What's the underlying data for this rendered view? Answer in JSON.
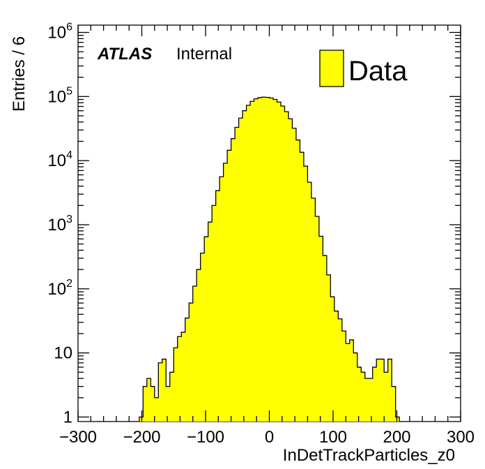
{
  "chart_data": {
    "type": "histogram",
    "xlabel": "InDetTrackParticles_z0",
    "ylabel": "Entries / 6",
    "xlim": [
      -300,
      300
    ],
    "ylim": [
      0.85,
      1300000
    ],
    "yscale": "log",
    "bin_width": 6,
    "label_atlas": "ATLAS",
    "label_status": "Internal",
    "legend": {
      "position": "top-right",
      "entries": [
        "Data"
      ]
    },
    "colors": {
      "fill": "#ffff00",
      "line": "#000000",
      "frame": "#000000"
    },
    "x_tick_labels": [
      "−300",
      "−200",
      "−100",
      "0",
      "100",
      "200",
      "300"
    ],
    "x_tick_values": [
      -300,
      -200,
      -100,
      0,
      100,
      200,
      300
    ],
    "y_tick_labels": [
      {
        "value": 1,
        "base": "1",
        "exp": ""
      },
      {
        "value": 10,
        "base": "10",
        "exp": ""
      },
      {
        "value": 100,
        "base": "10",
        "exp": "2"
      },
      {
        "value": 1000,
        "base": "10",
        "exp": "3"
      },
      {
        "value": 10000,
        "base": "10",
        "exp": "4"
      },
      {
        "value": 100000,
        "base": "10",
        "exp": "5"
      },
      {
        "value": 1000000,
        "base": "10",
        "exp": "6"
      }
    ],
    "series": [
      {
        "name": "Data",
        "bin_low_edges": [
          -204,
          -198,
          -192,
          -186,
          -180,
          -174,
          -168,
          -162,
          -156,
          -150,
          -144,
          -138,
          -132,
          -126,
          -120,
          -114,
          -108,
          -102,
          -96,
          -90,
          -84,
          -78,
          -72,
          -66,
          -60,
          -54,
          -48,
          -42,
          -36,
          -30,
          -24,
          -18,
          -12,
          -6,
          0,
          6,
          12,
          18,
          24,
          30,
          36,
          42,
          48,
          54,
          60,
          66,
          72,
          78,
          84,
          90,
          96,
          102,
          108,
          114,
          120,
          126,
          132,
          138,
          144,
          150,
          156,
          162,
          168,
          174,
          180,
          186,
          192,
          198
        ],
        "values": [
          1,
          3,
          4,
          3,
          2,
          7,
          8,
          3,
          5,
          12,
          18,
          21,
          35,
          60,
          110,
          200,
          360,
          650,
          1100,
          2000,
          3400,
          5600,
          9100,
          14500,
          22000,
          33000,
          46000,
          60000,
          73000,
          84000,
          92000,
          96000,
          98000,
          97000,
          95000,
          90000,
          82000,
          71000,
          58000,
          45000,
          32000,
          21000,
          13500,
          8200,
          4600,
          2600,
          1350,
          660,
          330,
          165,
          75,
          45,
          34,
          22,
          14,
          16,
          10,
          6,
          5,
          4,
          4,
          6,
          8,
          8,
          5,
          8,
          3,
          1
        ]
      }
    ]
  }
}
